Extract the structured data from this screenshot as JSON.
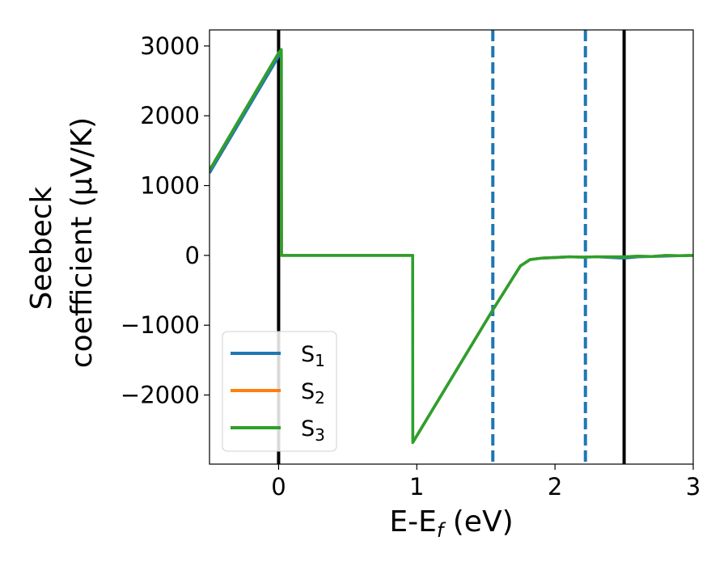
{
  "chart_data": {
    "type": "line",
    "xlabel": {
      "main": "E-E",
      "sub": "f",
      "unit": " (eV)"
    },
    "ylabel": {
      "line1": "Seebeck",
      "line2": "coefficient  (μV/K)"
    },
    "xlim": [
      -0.5,
      3.0
    ],
    "ylim": [
      -2990,
      3230
    ],
    "xticks": [
      0,
      1,
      2,
      3
    ],
    "yticks": [
      -2000,
      -1000,
      0,
      1000,
      2000,
      3000
    ],
    "ytick_labels": [
      "−2000",
      "−1000",
      "0",
      "1000",
      "2000",
      "3000"
    ],
    "grid": false,
    "legend_position": "lower-left",
    "series": [
      {
        "name": "S1",
        "label_main": "S",
        "label_sub": "1",
        "color": "#1f77b4",
        "x": [
          -0.5,
          0.0,
          0.02,
          0.021,
          0.97,
          0.971,
          1.55,
          1.75,
          1.82,
          1.9,
          2.0,
          2.1,
          2.2,
          2.3,
          2.5,
          2.6,
          2.7,
          2.8,
          2.9,
          3.0
        ],
        "y": [
          1180,
          2850,
          2880,
          0,
          0,
          -2680,
          -780,
          -150,
          -60,
          -40,
          -30,
          -20,
          -25,
          -20,
          -40,
          -20,
          -15,
          -10,
          -5,
          0
        ]
      },
      {
        "name": "S2",
        "label_main": "S",
        "label_sub": "2",
        "color": "#ff7f0e",
        "x": [
          -0.5,
          0.0,
          0.02,
          0.021,
          0.97,
          0.971,
          1.55,
          1.75,
          1.82,
          1.9,
          2.0,
          2.1,
          2.2,
          2.3,
          2.5,
          2.6,
          2.7,
          2.8,
          2.9,
          3.0
        ],
        "y": [
          1220,
          2900,
          2930,
          0,
          0,
          -2680,
          -780,
          -150,
          -60,
          -40,
          -30,
          -20,
          -25,
          -20,
          -20,
          -10,
          -15,
          0,
          -5,
          0
        ]
      },
      {
        "name": "S3",
        "label_main": "S",
        "label_sub": "3",
        "color": "#2ca02c",
        "x": [
          -0.5,
          0.0,
          0.02,
          0.021,
          0.97,
          0.971,
          1.55,
          1.75,
          1.82,
          1.9,
          2.0,
          2.1,
          2.2,
          2.3,
          2.5,
          2.6,
          2.7,
          2.8,
          2.9,
          3.0
        ],
        "y": [
          1220,
          2900,
          2950,
          0,
          0,
          -2680,
          -780,
          -150,
          -60,
          -40,
          -30,
          -20,
          -25,
          -20,
          -20,
          -10,
          -15,
          0,
          -5,
          0
        ]
      }
    ],
    "vertical_lines": [
      {
        "x": 0.0,
        "style": "solid",
        "color": "#000000"
      },
      {
        "x": 1.55,
        "style": "dashed",
        "color": "#1f77b4"
      },
      {
        "x": 2.22,
        "style": "dashed",
        "color": "#1f77b4"
      },
      {
        "x": 2.5,
        "style": "solid",
        "color": "#000000"
      }
    ]
  }
}
